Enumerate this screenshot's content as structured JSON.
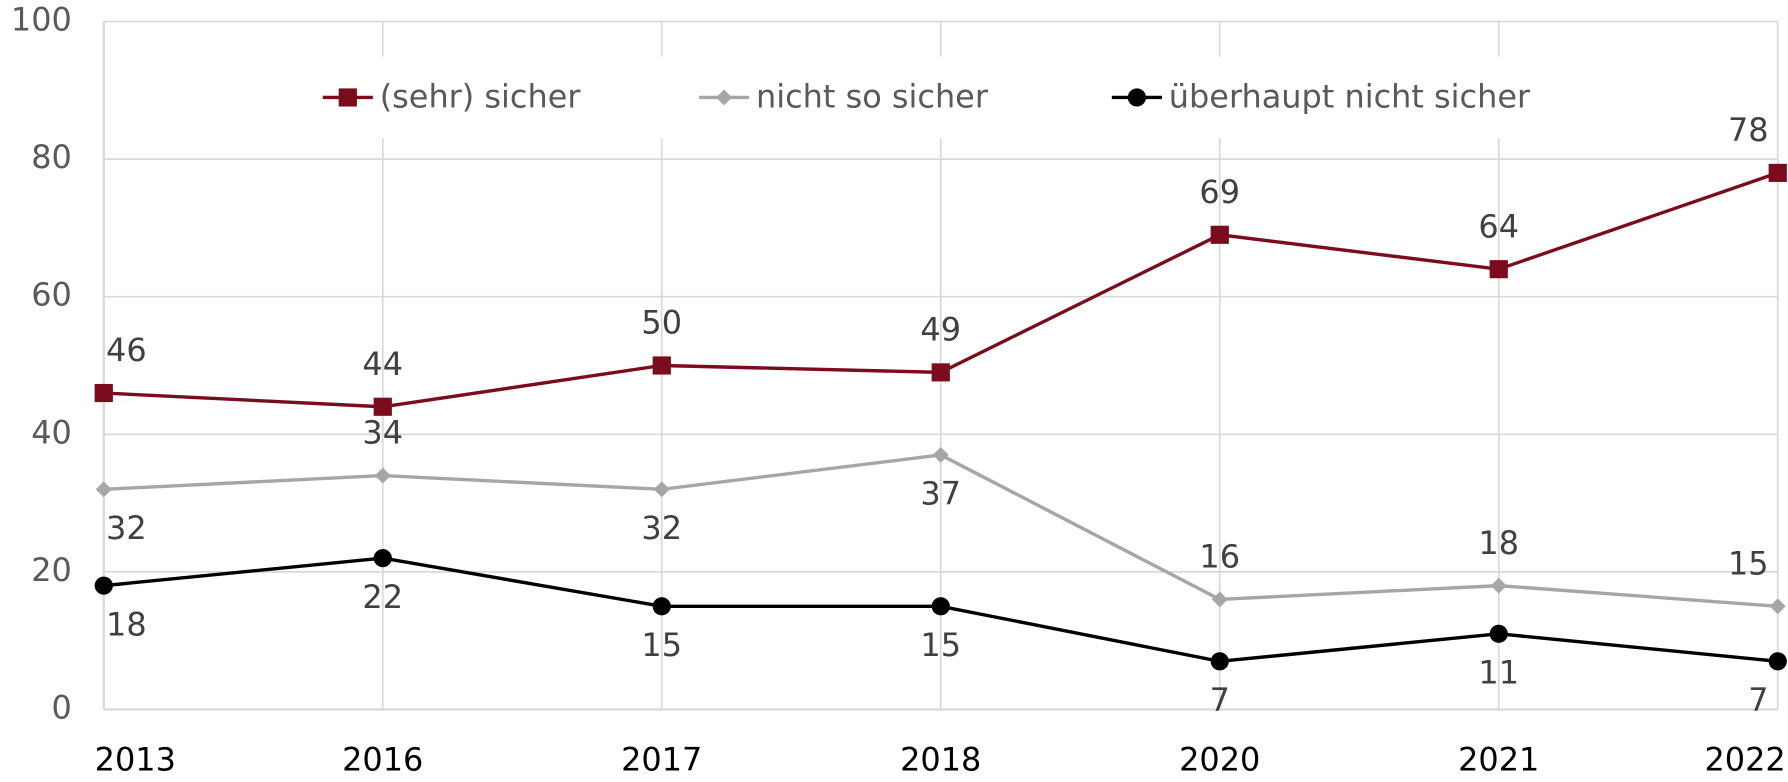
{
  "chart_data": {
    "type": "line",
    "categories": [
      "2013",
      "2016",
      "2017",
      "2018",
      "2020",
      "2021",
      "2022"
    ],
    "series": [
      {
        "name": "(sehr) sicher",
        "color": "#7b0c1e",
        "marker": "square",
        "values": [
          46,
          44,
          50,
          49,
          69,
          64,
          78
        ]
      },
      {
        "name": "nicht so sicher",
        "color": "#a6a6a6",
        "marker": "diamond",
        "values": [
          32,
          34,
          32,
          37,
          16,
          18,
          15
        ]
      },
      {
        "name": "überhaupt nicht sicher",
        "color": "#000000",
        "marker": "circle",
        "values": [
          18,
          22,
          15,
          15,
          7,
          11,
          7
        ]
      }
    ],
    "ylim": [
      0,
      100
    ],
    "yticks": [
      0,
      20,
      40,
      60,
      80,
      100
    ],
    "grid": true,
    "legend": "top"
  }
}
